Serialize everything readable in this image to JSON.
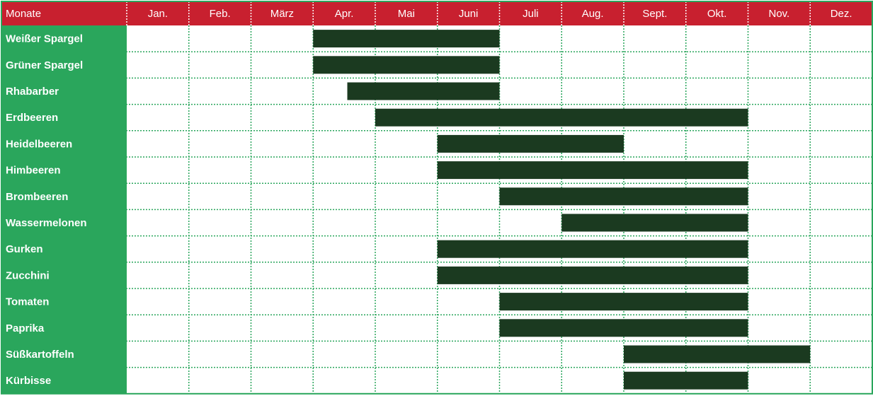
{
  "colors": {
    "header_bg": "#c8202f",
    "label_bg": "#2aa65c",
    "bar": "#1b3a20",
    "grid": "#2aa65c",
    "header_grid": "#ffffff",
    "background": "#ffffff"
  },
  "chart_data": {
    "type": "table",
    "corner_label": "Monate",
    "months": [
      "Jan.",
      "Feb.",
      "März",
      "Apr.",
      "Mai",
      "Juni",
      "Juli",
      "Aug.",
      "Sept.",
      "Okt.",
      "Nov.",
      "Dez."
    ],
    "rows": [
      {
        "label": "Weißer Spargel",
        "start": 3.0,
        "end": 6.0
      },
      {
        "label": "Grüner Spargel",
        "start": 3.0,
        "end": 6.0
      },
      {
        "label": "Rhabarber",
        "start": 3.55,
        "end": 6.0
      },
      {
        "label": "Erdbeeren",
        "start": 4.0,
        "end": 10.0
      },
      {
        "label": "Heidelbeeren",
        "start": 5.0,
        "end": 8.0
      },
      {
        "label": "Himbeeren",
        "start": 5.0,
        "end": 10.0
      },
      {
        "label": "Brombeeren",
        "start": 6.0,
        "end": 10.0
      },
      {
        "label": "Wassermelonen",
        "start": 7.0,
        "end": 10.0
      },
      {
        "label": "Gurken",
        "start": 5.0,
        "end": 10.0
      },
      {
        "label": "Zucchini",
        "start": 5.0,
        "end": 10.0
      },
      {
        "label": "Tomaten",
        "start": 6.0,
        "end": 10.0
      },
      {
        "label": "Paprika",
        "start": 6.0,
        "end": 10.0
      },
      {
        "label": "Süßkartoffeln",
        "start": 8.0,
        "end": 11.0
      },
      {
        "label": "Kürbisse",
        "start": 8.0,
        "end": 10.0
      }
    ]
  }
}
